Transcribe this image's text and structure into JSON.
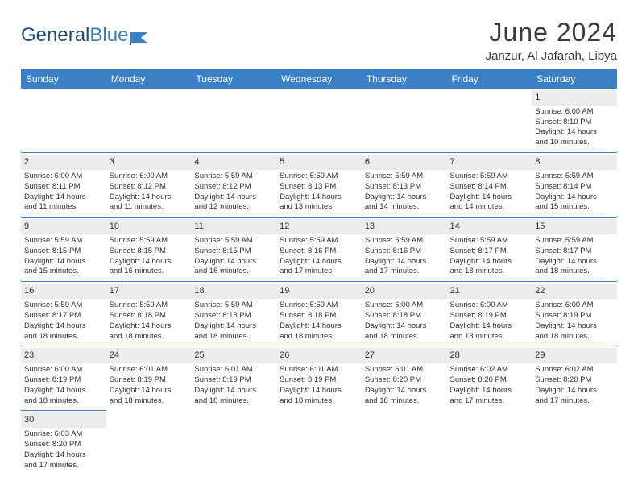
{
  "logo": {
    "part1": "General",
    "part2": "Blue"
  },
  "title": "June 2024",
  "location": "Janzur, Al Jafarah, Libya",
  "colors": {
    "header_bg": "#3b7fc4",
    "header_text": "#ffffff",
    "divider": "#3b7fc4",
    "daynum_bg": "#ececec",
    "text": "#333333",
    "logo_dark": "#1a4a7a",
    "logo_light": "#3b7fc4"
  },
  "typography": {
    "title_fontsize": 32,
    "location_fontsize": 15,
    "header_fontsize": 12,
    "cell_fontsize": 9.5,
    "daynum_fontsize": 11
  },
  "weekdays": [
    "Sunday",
    "Monday",
    "Tuesday",
    "Wednesday",
    "Thursday",
    "Friday",
    "Saturday"
  ],
  "weeks": [
    [
      null,
      null,
      null,
      null,
      null,
      null,
      {
        "n": "1",
        "sr": "Sunrise: 6:00 AM",
        "ss": "Sunset: 8:10 PM",
        "d1": "Daylight: 14 hours",
        "d2": "and 10 minutes."
      }
    ],
    [
      {
        "n": "2",
        "sr": "Sunrise: 6:00 AM",
        "ss": "Sunset: 8:11 PM",
        "d1": "Daylight: 14 hours",
        "d2": "and 11 minutes."
      },
      {
        "n": "3",
        "sr": "Sunrise: 6:00 AM",
        "ss": "Sunset: 8:12 PM",
        "d1": "Daylight: 14 hours",
        "d2": "and 11 minutes."
      },
      {
        "n": "4",
        "sr": "Sunrise: 5:59 AM",
        "ss": "Sunset: 8:12 PM",
        "d1": "Daylight: 14 hours",
        "d2": "and 12 minutes."
      },
      {
        "n": "5",
        "sr": "Sunrise: 5:59 AM",
        "ss": "Sunset: 8:13 PM",
        "d1": "Daylight: 14 hours",
        "d2": "and 13 minutes."
      },
      {
        "n": "6",
        "sr": "Sunrise: 5:59 AM",
        "ss": "Sunset: 8:13 PM",
        "d1": "Daylight: 14 hours",
        "d2": "and 14 minutes."
      },
      {
        "n": "7",
        "sr": "Sunrise: 5:59 AM",
        "ss": "Sunset: 8:14 PM",
        "d1": "Daylight: 14 hours",
        "d2": "and 14 minutes."
      },
      {
        "n": "8",
        "sr": "Sunrise: 5:59 AM",
        "ss": "Sunset: 8:14 PM",
        "d1": "Daylight: 14 hours",
        "d2": "and 15 minutes."
      }
    ],
    [
      {
        "n": "9",
        "sr": "Sunrise: 5:59 AM",
        "ss": "Sunset: 8:15 PM",
        "d1": "Daylight: 14 hours",
        "d2": "and 15 minutes."
      },
      {
        "n": "10",
        "sr": "Sunrise: 5:59 AM",
        "ss": "Sunset: 8:15 PM",
        "d1": "Daylight: 14 hours",
        "d2": "and 16 minutes."
      },
      {
        "n": "11",
        "sr": "Sunrise: 5:59 AM",
        "ss": "Sunset: 8:15 PM",
        "d1": "Daylight: 14 hours",
        "d2": "and 16 minutes."
      },
      {
        "n": "12",
        "sr": "Sunrise: 5:59 AM",
        "ss": "Sunset: 8:16 PM",
        "d1": "Daylight: 14 hours",
        "d2": "and 17 minutes."
      },
      {
        "n": "13",
        "sr": "Sunrise: 5:59 AM",
        "ss": "Sunset: 8:16 PM",
        "d1": "Daylight: 14 hours",
        "d2": "and 17 minutes."
      },
      {
        "n": "14",
        "sr": "Sunrise: 5:59 AM",
        "ss": "Sunset: 8:17 PM",
        "d1": "Daylight: 14 hours",
        "d2": "and 18 minutes."
      },
      {
        "n": "15",
        "sr": "Sunrise: 5:59 AM",
        "ss": "Sunset: 8:17 PM",
        "d1": "Daylight: 14 hours",
        "d2": "and 18 minutes."
      }
    ],
    [
      {
        "n": "16",
        "sr": "Sunrise: 5:59 AM",
        "ss": "Sunset: 8:17 PM",
        "d1": "Daylight: 14 hours",
        "d2": "and 18 minutes."
      },
      {
        "n": "17",
        "sr": "Sunrise: 5:59 AM",
        "ss": "Sunset: 8:18 PM",
        "d1": "Daylight: 14 hours",
        "d2": "and 18 minutes."
      },
      {
        "n": "18",
        "sr": "Sunrise: 5:59 AM",
        "ss": "Sunset: 8:18 PM",
        "d1": "Daylight: 14 hours",
        "d2": "and 18 minutes."
      },
      {
        "n": "19",
        "sr": "Sunrise: 5:59 AM",
        "ss": "Sunset: 8:18 PM",
        "d1": "Daylight: 14 hours",
        "d2": "and 18 minutes."
      },
      {
        "n": "20",
        "sr": "Sunrise: 6:00 AM",
        "ss": "Sunset: 8:18 PM",
        "d1": "Daylight: 14 hours",
        "d2": "and 18 minutes."
      },
      {
        "n": "21",
        "sr": "Sunrise: 6:00 AM",
        "ss": "Sunset: 8:19 PM",
        "d1": "Daylight: 14 hours",
        "d2": "and 18 minutes."
      },
      {
        "n": "22",
        "sr": "Sunrise: 6:00 AM",
        "ss": "Sunset: 8:19 PM",
        "d1": "Daylight: 14 hours",
        "d2": "and 18 minutes."
      }
    ],
    [
      {
        "n": "23",
        "sr": "Sunrise: 6:00 AM",
        "ss": "Sunset: 8:19 PM",
        "d1": "Daylight: 14 hours",
        "d2": "and 18 minutes."
      },
      {
        "n": "24",
        "sr": "Sunrise: 6:01 AM",
        "ss": "Sunset: 8:19 PM",
        "d1": "Daylight: 14 hours",
        "d2": "and 18 minutes."
      },
      {
        "n": "25",
        "sr": "Sunrise: 6:01 AM",
        "ss": "Sunset: 8:19 PM",
        "d1": "Daylight: 14 hours",
        "d2": "and 18 minutes."
      },
      {
        "n": "26",
        "sr": "Sunrise: 6:01 AM",
        "ss": "Sunset: 8:19 PM",
        "d1": "Daylight: 14 hours",
        "d2": "and 18 minutes."
      },
      {
        "n": "27",
        "sr": "Sunrise: 6:01 AM",
        "ss": "Sunset: 8:20 PM",
        "d1": "Daylight: 14 hours",
        "d2": "and 18 minutes."
      },
      {
        "n": "28",
        "sr": "Sunrise: 6:02 AM",
        "ss": "Sunset: 8:20 PM",
        "d1": "Daylight: 14 hours",
        "d2": "and 17 minutes."
      },
      {
        "n": "29",
        "sr": "Sunrise: 6:02 AM",
        "ss": "Sunset: 8:20 PM",
        "d1": "Daylight: 14 hours",
        "d2": "and 17 minutes."
      }
    ],
    [
      {
        "n": "30",
        "sr": "Sunrise: 6:03 AM",
        "ss": "Sunset: 8:20 PM",
        "d1": "Daylight: 14 hours",
        "d2": "and 17 minutes."
      },
      null,
      null,
      null,
      null,
      null,
      null
    ]
  ]
}
